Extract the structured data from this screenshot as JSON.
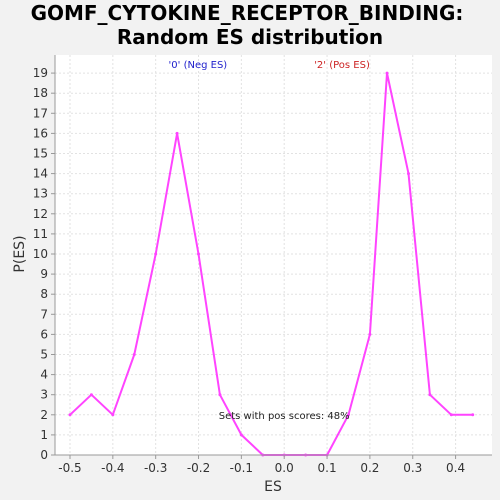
{
  "colors": {
    "background": "#f2f2f2",
    "plot_background": "#ffffff",
    "series_line": "#ff44ff",
    "neg_label": "#2222cc",
    "pos_label": "#cc2222",
    "grid": "#e2e2e2"
  },
  "chart_data": {
    "type": "line",
    "title_line1": "GOMF_CYTOKINE_RECEPTOR_BINDING:",
    "title_line2": "Random ES distribution",
    "xlabel": "ES",
    "ylabel": "P(ES)",
    "xlim": [
      -0.535,
      0.485
    ],
    "ylim": [
      0,
      19.9
    ],
    "grid": true,
    "x_ticks": [
      "-0.5",
      "-0.4",
      "-0.3",
      "-0.2",
      "-0.1",
      "0.0",
      "0.1",
      "0.2",
      "0.3",
      "0.4"
    ],
    "y_ticks": [
      "0",
      "1",
      "2",
      "3",
      "4",
      "5",
      "6",
      "7",
      "8",
      "9",
      "10",
      "11",
      "12",
      "13",
      "14",
      "15",
      "16",
      "17",
      "18",
      "19"
    ],
    "legend": {
      "neg": {
        "label": "'0' (Neg ES)",
        "x": -0.27
      },
      "pos": {
        "label": "'2' (Pos ES)",
        "x": 0.07
      }
    },
    "annotation": {
      "text": "Sets with pos scores: 48%",
      "x": 0.0,
      "y": 2
    },
    "series": [
      {
        "x": [
          -0.5,
          -0.45,
          -0.4,
          -0.35,
          -0.3,
          -0.25,
          -0.2,
          -0.15,
          -0.1,
          -0.05,
          0.0,
          0.05,
          0.1,
          0.15,
          0.2,
          0.24,
          0.29,
          0.34,
          0.39,
          0.44
        ],
        "y": [
          2,
          3,
          2,
          5,
          10,
          16,
          10,
          3,
          1,
          0,
          0,
          0,
          0,
          2,
          6,
          19,
          14,
          3,
          2,
          2
        ]
      }
    ]
  }
}
